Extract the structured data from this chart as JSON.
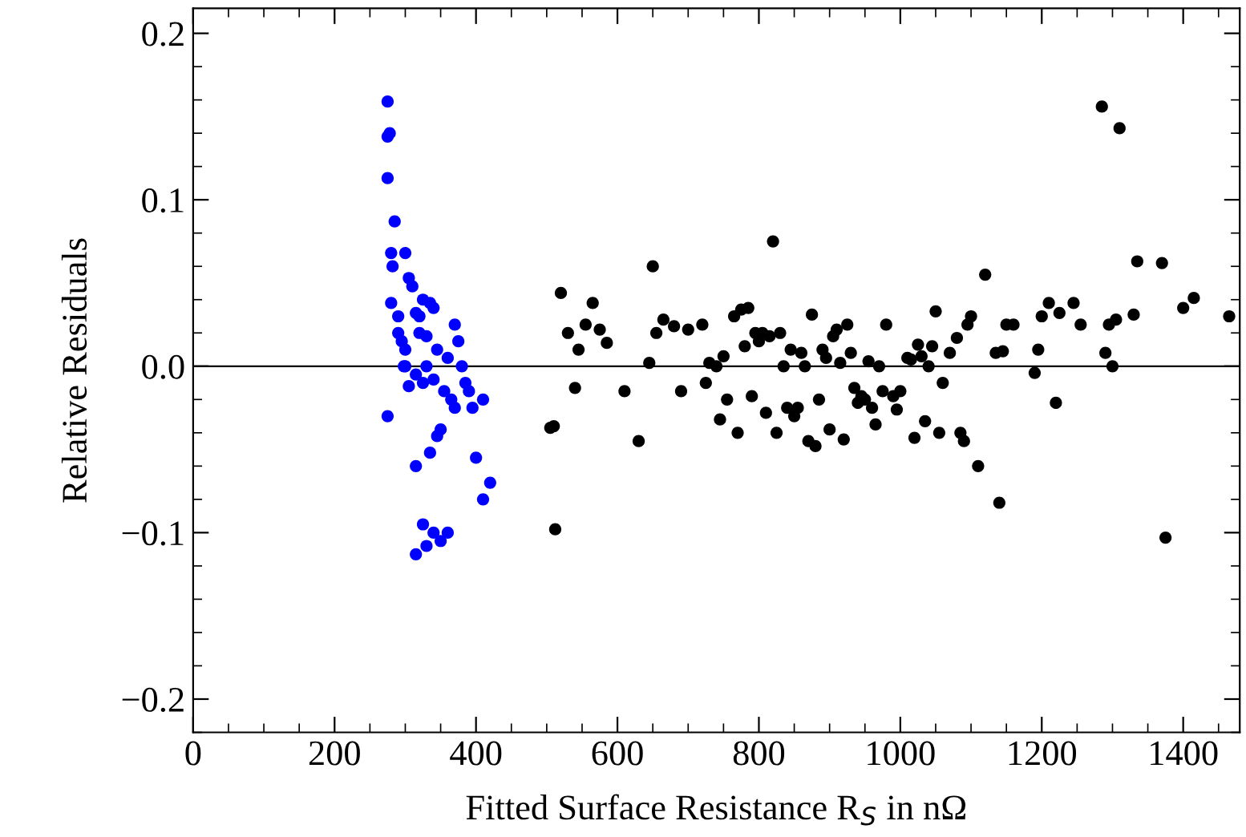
{
  "chart_data": {
    "type": "scatter",
    "xlabel": "Fitted Surface Resistance R$_{S}$ in nΩ",
    "ylabel": "Relative Residuals",
    "marker": "circle",
    "grid": false,
    "legend": false,
    "xlim": [
      0,
      1480
    ],
    "xticks": [
      0,
      200,
      400,
      600,
      800,
      1000,
      1200,
      1400
    ],
    "ylim": [
      -0.22,
      0.215
    ],
    "yticks": [
      {
        "value": -0.2,
        "label": "−0.2"
      },
      {
        "value": -0.1,
        "label": "−0.1"
      },
      {
        "value": 0,
        "label": "0.0"
      },
      {
        "value": 0.1,
        "label": "0.1"
      },
      {
        "value": 0.2,
        "label": "0.2"
      }
    ],
    "ref_lines": [
      {
        "axis": "y",
        "value": 0,
        "color": "#000000"
      }
    ],
    "series": [
      {
        "color": "#0000ff",
        "x": [
          275,
          275,
          278,
          275,
          280,
          282,
          285,
          280,
          290,
          295,
          298,
          275,
          300,
          305,
          310,
          315,
          290,
          300,
          320,
          325,
          330,
          335,
          340,
          320,
          315,
          325,
          330,
          340,
          345,
          355,
          360,
          365,
          370,
          375,
          380,
          385,
          390,
          395,
          410,
          400,
          410,
          420,
          315,
          350,
          345,
          325,
          340,
          350,
          360,
          315,
          330,
          305,
          300,
          370,
          335
        ],
        "values": [
          0.159,
          0.138,
          0.14,
          0.113,
          0.068,
          0.06,
          0.087,
          0.038,
          0.03,
          0.015,
          0.0,
          -0.03,
          0.068,
          0.053,
          0.048,
          0.032,
          0.02,
          0.01,
          0.03,
          0.04,
          0.018,
          0.038,
          0.035,
          0.02,
          -0.005,
          -0.01,
          0.0,
          -0.008,
          0.01,
          -0.015,
          0.005,
          -0.02,
          0.025,
          0.015,
          0.0,
          -0.01,
          -0.015,
          -0.025,
          -0.02,
          -0.055,
          -0.08,
          -0.07,
          -0.06,
          -0.038,
          -0.042,
          -0.095,
          -0.1,
          -0.105,
          -0.1,
          -0.113,
          -0.108,
          -0.012,
          0.0,
          -0.025,
          -0.052
        ]
      },
      {
        "color": "#000000",
        "x": [
          505,
          510,
          512,
          520,
          530,
          540,
          545,
          555,
          565,
          575,
          585,
          610,
          630,
          645,
          650,
          655,
          665,
          680,
          690,
          700,
          720,
          725,
          730,
          740,
          745,
          750,
          755,
          765,
          770,
          775,
          780,
          785,
          790,
          795,
          800,
          805,
          810,
          815,
          820,
          825,
          830,
          835,
          840,
          845,
          850,
          855,
          860,
          865,
          870,
          875,
          880,
          885,
          890,
          895,
          900,
          905,
          910,
          915,
          920,
          925,
          930,
          935,
          940,
          945,
          950,
          955,
          960,
          965,
          970,
          975,
          980,
          990,
          995,
          1000,
          1010,
          1015,
          1020,
          1025,
          1030,
          1035,
          1040,
          1045,
          1050,
          1055,
          1060,
          1070,
          1080,
          1085,
          1090,
          1095,
          1100,
          1110,
          1120,
          1135,
          1140,
          1145,
          1150,
          1160,
          1190,
          1195,
          1200,
          1210,
          1220,
          1225,
          1245,
          1255,
          1285,
          1290,
          1295,
          1300,
          1305,
          1310,
          1330,
          1335,
          1370,
          1375,
          1400,
          1415,
          1465
        ],
        "values": [
          -0.037,
          -0.036,
          -0.098,
          0.044,
          0.02,
          -0.013,
          0.01,
          0.025,
          0.038,
          0.022,
          0.014,
          -0.015,
          -0.045,
          0.002,
          0.06,
          0.02,
          0.028,
          0.024,
          -0.015,
          0.022,
          0.025,
          -0.01,
          0.002,
          0.0,
          -0.032,
          0.006,
          -0.02,
          0.03,
          -0.04,
          0.034,
          0.012,
          0.035,
          -0.018,
          0.02,
          0.015,
          0.02,
          -0.028,
          0.018,
          0.075,
          -0.04,
          0.02,
          0.0,
          -0.025,
          0.01,
          -0.03,
          -0.025,
          0.008,
          0.0,
          -0.045,
          0.031,
          -0.048,
          -0.02,
          0.01,
          0.005,
          -0.038,
          0.018,
          0.022,
          0.002,
          -0.044,
          0.025,
          0.008,
          -0.013,
          -0.022,
          -0.018,
          -0.02,
          0.003,
          -0.025,
          -0.035,
          0.0,
          -0.015,
          0.025,
          -0.018,
          -0.026,
          -0.015,
          0.005,
          0.004,
          -0.043,
          0.013,
          0.006,
          -0.033,
          0.0,
          0.012,
          0.033,
          -0.04,
          -0.01,
          0.008,
          0.017,
          -0.04,
          -0.045,
          0.025,
          0.03,
          -0.06,
          0.055,
          0.008,
          -0.082,
          0.009,
          0.025,
          0.025,
          -0.004,
          0.01,
          0.03,
          0.038,
          -0.022,
          0.032,
          0.038,
          0.025,
          0.156,
          0.008,
          0.025,
          0.0,
          0.028,
          0.143,
          0.031,
          0.063,
          0.062,
          -0.103,
          0.035,
          0.041,
          0.03
        ]
      }
    ]
  }
}
